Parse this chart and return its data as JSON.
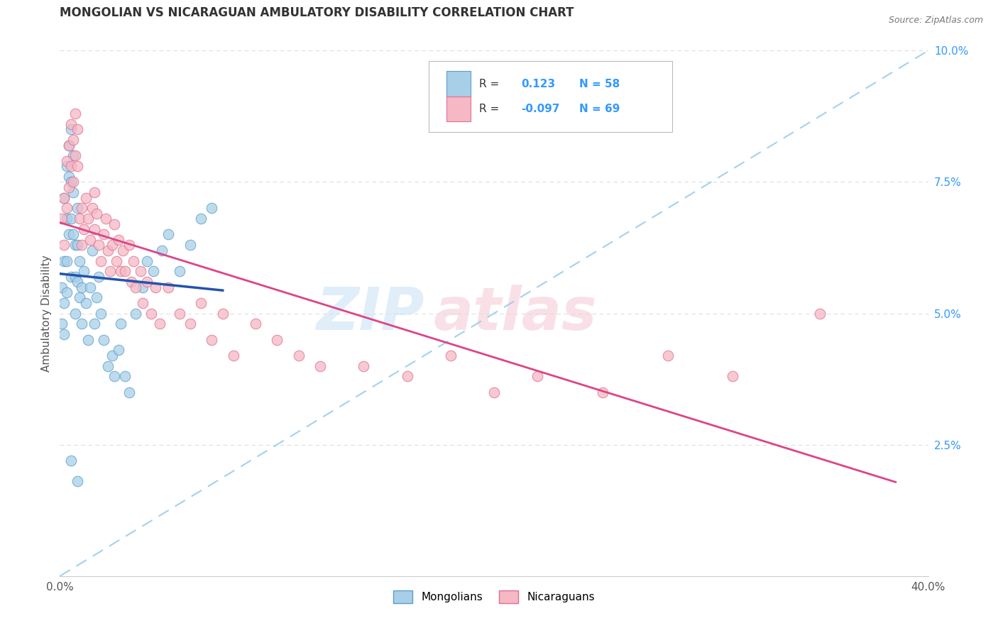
{
  "title": "MONGOLIAN VS NICARAGUAN AMBULATORY DISABILITY CORRELATION CHART",
  "source": "Source: ZipAtlas.com",
  "ylabel": "Ambulatory Disability",
  "xlim": [
    0.0,
    0.4
  ],
  "ylim": [
    0.0,
    0.1
  ],
  "x_tick_positions": [
    0.0,
    0.08,
    0.16,
    0.24,
    0.32,
    0.4
  ],
  "x_tick_labels": [
    "0.0%",
    "",
    "",
    "",
    "",
    "40.0%"
  ],
  "y_tick_positions": [
    0.025,
    0.05,
    0.075,
    0.1
  ],
  "y_tick_labels": [
    "2.5%",
    "5.0%",
    "7.5%",
    "10.0%"
  ],
  "legend_r_mongolian": "0.123",
  "legend_n_mongolian": "58",
  "legend_r_nicaraguan": "-0.097",
  "legend_n_nicaraguan": "69",
  "mongolian_color": "#a8cfe8",
  "mongolian_edge_color": "#5b9ec9",
  "nicaraguan_color": "#f5b8c4",
  "nicaraguan_edge_color": "#e07090",
  "mongolian_line_color": "#2255aa",
  "nicaraguan_line_color": "#dd4488",
  "dashed_line_color": "#99ccee",
  "watermark_zip_color": "#d0e8f5",
  "watermark_atlas_color": "#f5d0dc",
  "background_color": "#ffffff",
  "grid_color": "#dddddd",
  "title_color": "#333333",
  "source_color": "#777777",
  "tick_color_x": "#555555",
  "tick_color_y": "#3399ff"
}
